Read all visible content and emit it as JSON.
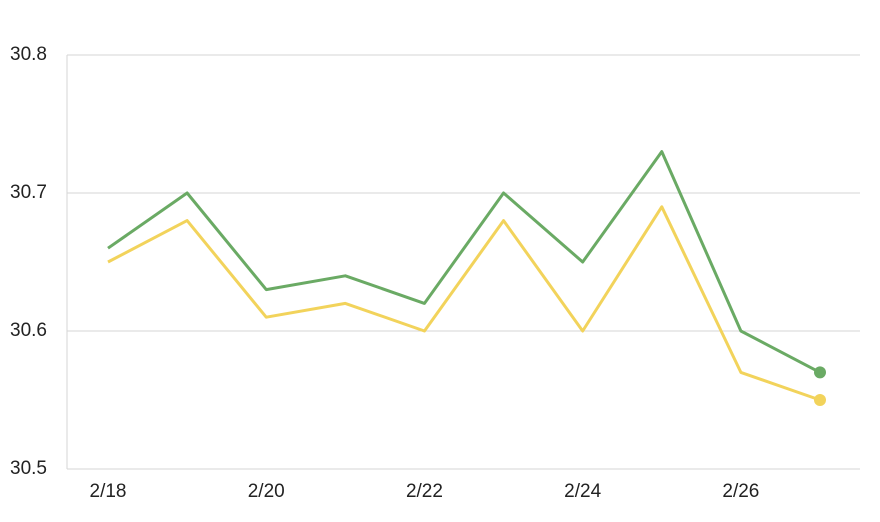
{
  "chart_data": {
    "type": "line",
    "categories": [
      "2/18",
      null,
      "2/20",
      null,
      "2/22",
      null,
      "2/24",
      null,
      "2/26",
      null
    ],
    "series": [
      {
        "color": "#6aaa64",
        "values": [
          30.66,
          30.7,
          30.63,
          30.64,
          30.62,
          30.7,
          30.65,
          30.73,
          30.6,
          30.57
        ]
      },
      {
        "color": "#f2d35b",
        "values": [
          30.65,
          30.68,
          30.61,
          30.62,
          30.6,
          30.68,
          30.6,
          30.69,
          30.57,
          30.55
        ]
      }
    ],
    "ylim": [
      30.5,
      30.8
    ],
    "yticks": [
      30.5,
      30.6,
      30.7,
      30.8
    ],
    "grid": true
  }
}
